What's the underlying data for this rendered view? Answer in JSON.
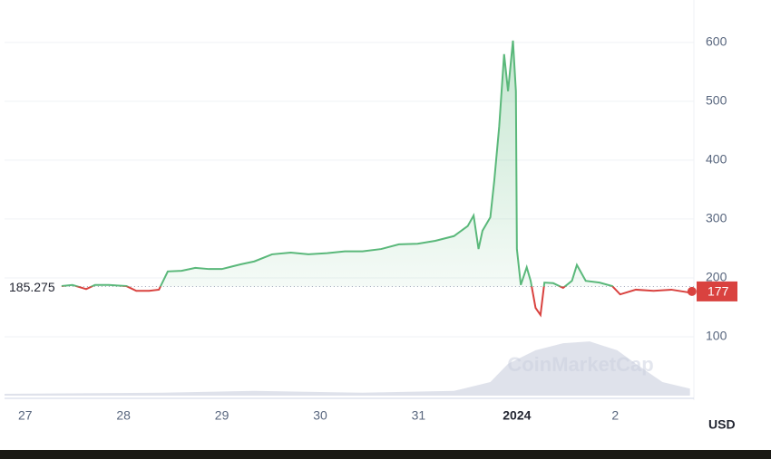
{
  "chart_data": {
    "type": "line",
    "x": [
      0.37,
      0.48,
      0.62,
      0.71,
      0.85,
      1.03,
      1.13,
      1.26,
      1.36,
      1.45,
      1.59,
      1.73,
      1.87,
      2.0,
      2.19,
      2.33,
      2.51,
      2.7,
      2.88,
      3.07,
      3.25,
      3.43,
      3.62,
      3.8,
      3.99,
      4.17,
      4.36,
      4.5,
      4.56,
      4.61,
      4.65,
      4.73,
      4.77,
      4.82,
      4.87,
      4.91,
      4.96,
      4.99,
      5.0,
      5.04,
      5.1,
      5.14,
      5.19,
      5.24,
      5.28,
      5.37,
      5.47,
      5.56,
      5.61,
      5.7,
      5.84,
      5.97,
      6.05,
      6.21,
      6.39,
      6.57,
      6.76,
      6.78
    ],
    "values": [
      186,
      188,
      181,
      188,
      188,
      186,
      178,
      178,
      180,
      211,
      212,
      217,
      215,
      215,
      223,
      228,
      240,
      243,
      240,
      242,
      245,
      245,
      249,
      257,
      258,
      263,
      271,
      288,
      306,
      249,
      280,
      303,
      365,
      457,
      580,
      517,
      603,
      517,
      249,
      188,
      218,
      195,
      149,
      137,
      192,
      191,
      183,
      195,
      222,
      195,
      192,
      186,
      172,
      180,
      178,
      180,
      175,
      177
    ],
    "reference": 185.275,
    "volume_x": [
      -0.21,
      1.4,
      2.33,
      3.43,
      4.36,
      4.73,
      4.91,
      5.19,
      5.47,
      5.74,
      6.02,
      6.21,
      6.48,
      6.76
    ],
    "volume_values": [
      3,
      5,
      8,
      5,
      8,
      23,
      54,
      77,
      89,
      92,
      77,
      54,
      23,
      12
    ],
    "up_color": "#5ab87a",
    "down_color": "#d9423f",
    "volume_color": "#c9cede",
    "xlim": [
      -0.21,
      6.8
    ],
    "xticks": [
      {
        "value": 0,
        "label": "27"
      },
      {
        "value": 1,
        "label": "28"
      },
      {
        "value": 2,
        "label": "29"
      },
      {
        "value": 3,
        "label": "30"
      },
      {
        "value": 4,
        "label": "31"
      },
      {
        "value": 5,
        "label": "2024"
      },
      {
        "value": 6,
        "label": "2"
      }
    ],
    "ylim": [
      0,
      672
    ],
    "yticks": [
      100,
      200,
      300,
      400,
      500,
      600
    ],
    "grid": true,
    "currency": "USD",
    "watermark": "CoinMarketCap"
  }
}
